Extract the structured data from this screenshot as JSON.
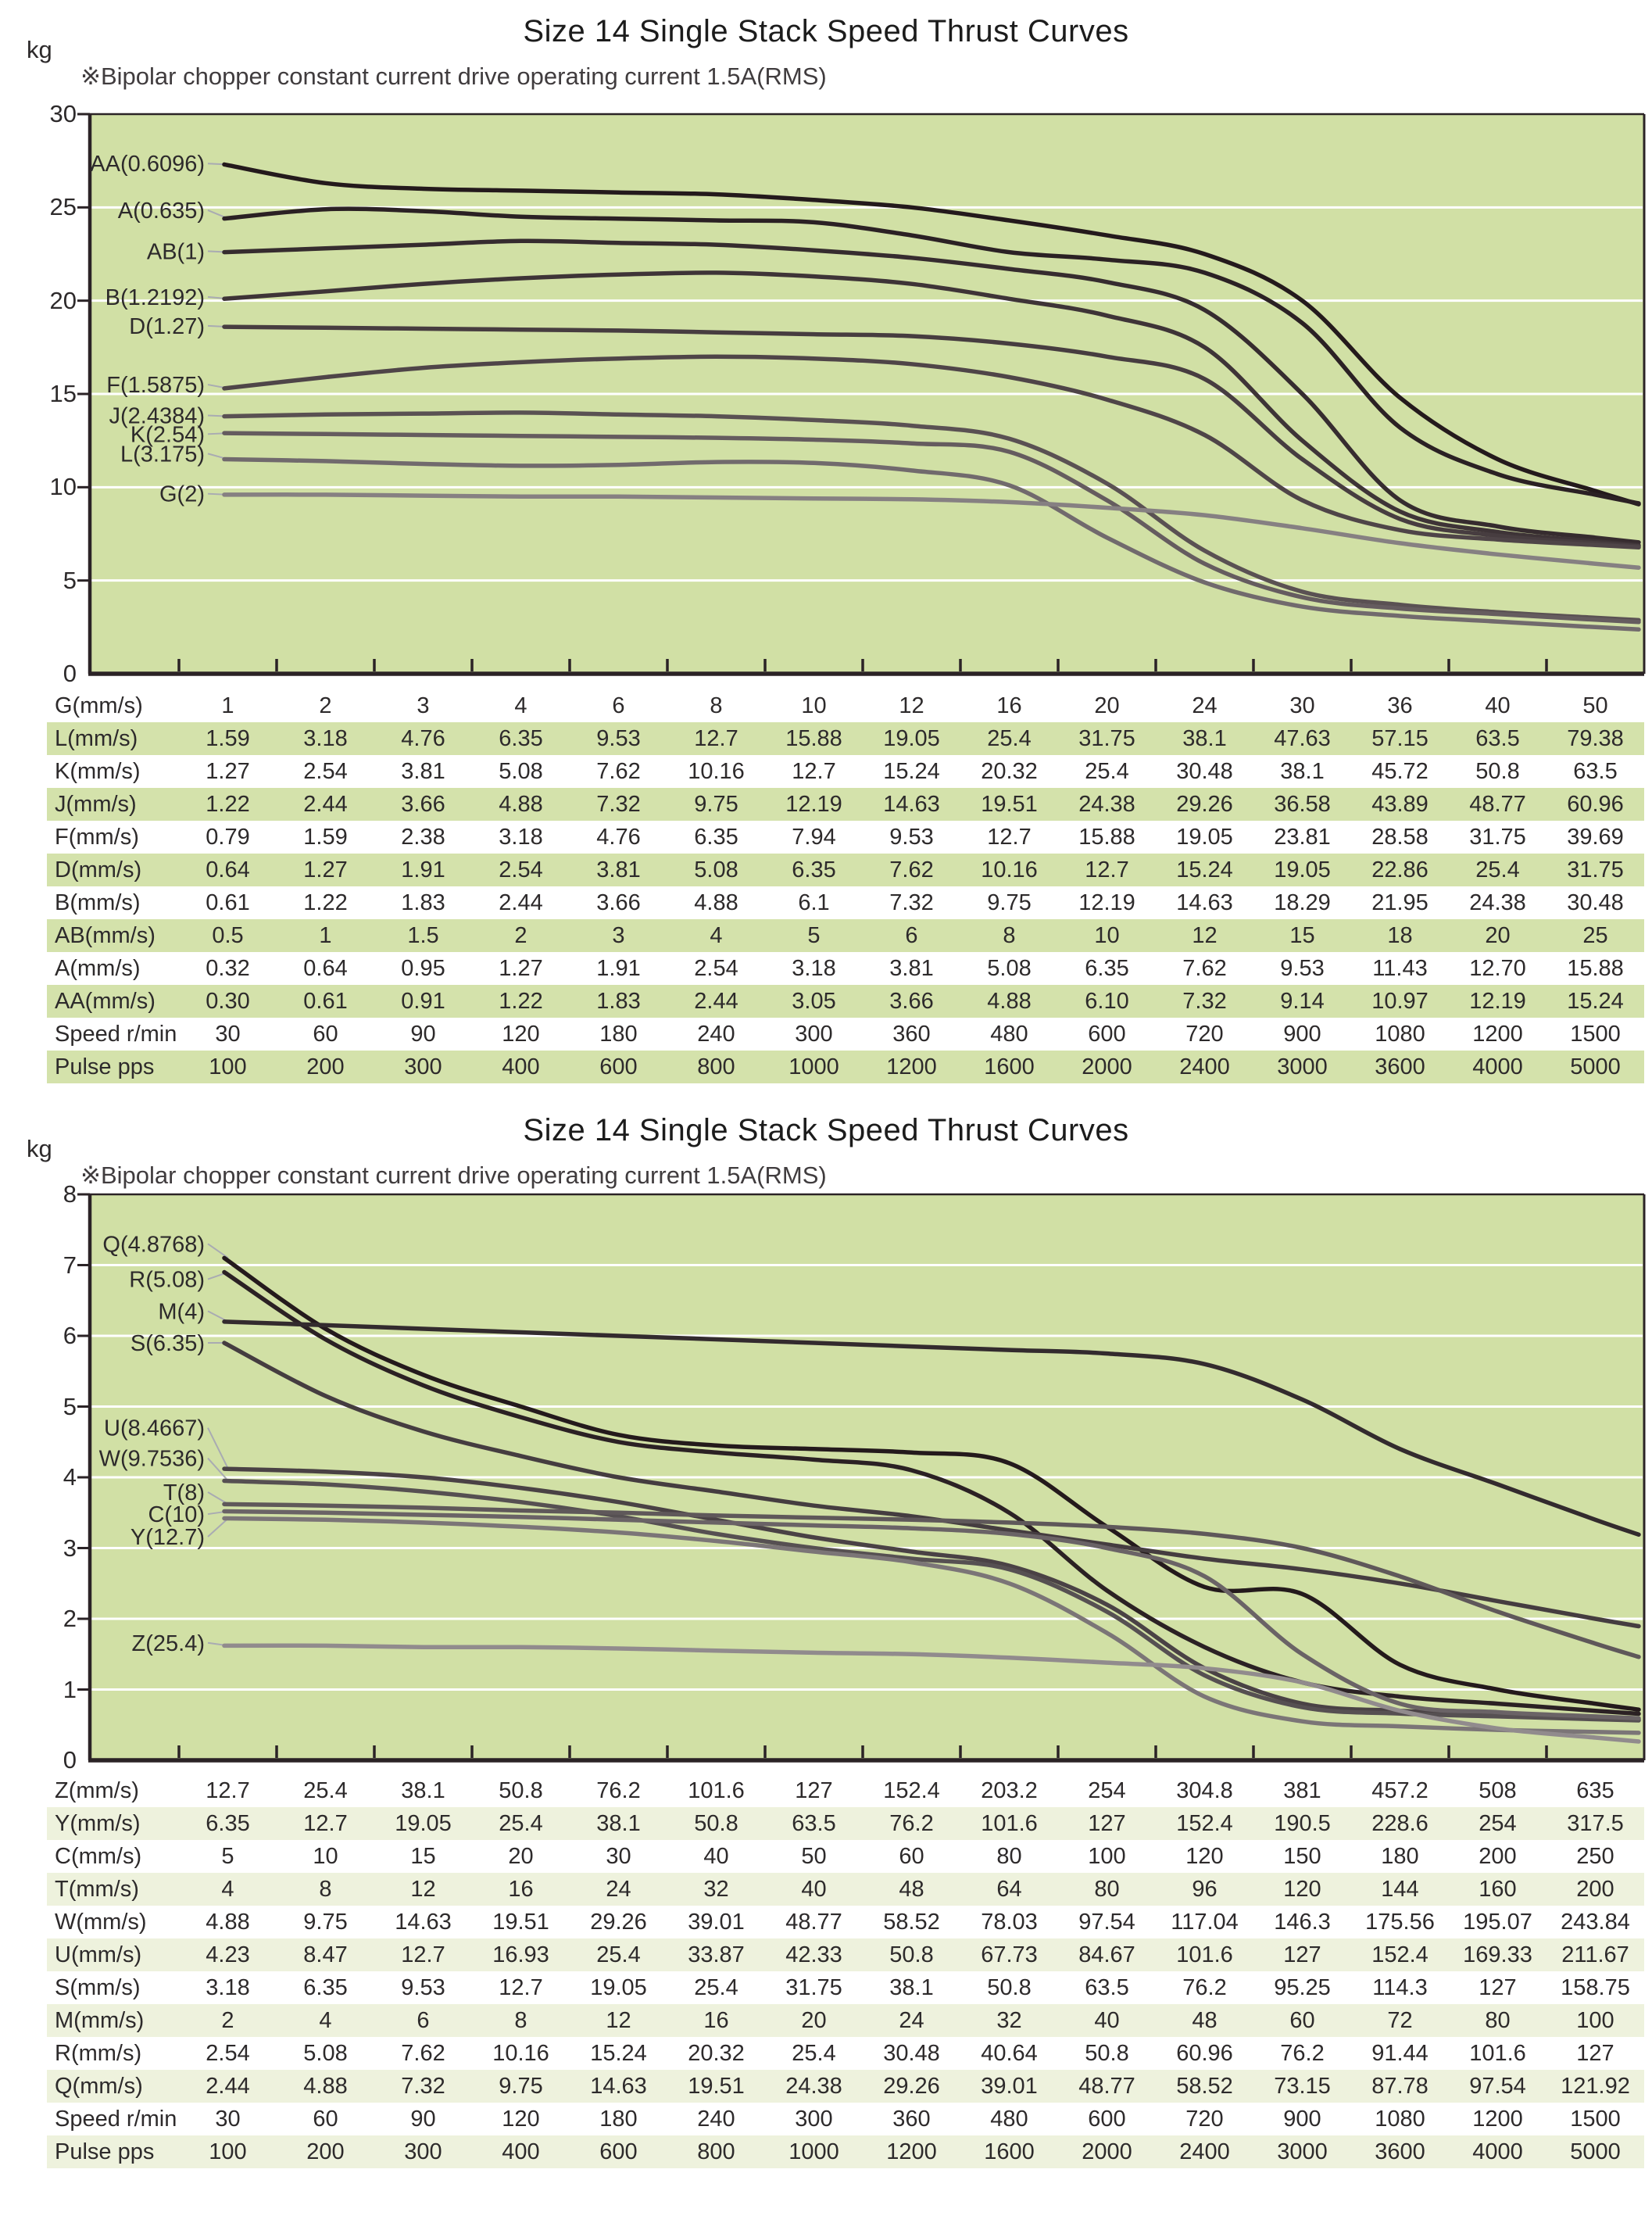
{
  "chart_data": [
    {
      "type": "line",
      "title": "Size 14 Single Stack Speed Thrust Curves",
      "subtitle": "※Bipolar chopper constant current drive operating current  1.5A(RMS)",
      "y_unit": "kg",
      "ylim": [
        0,
        30
      ],
      "y_ticks": [
        "30",
        "25",
        "20",
        "15",
        "10",
        "5",
        "0"
      ],
      "grid": "horizontal-white-lines",
      "legend_position": "inline-left-labels",
      "plot_bg": "#d1e0a5",
      "stripe_color": "#d4e2ab",
      "series": [
        {
          "name": "AA",
          "label": "AA(0.6096)",
          "color": "#241a1c",
          "label_kg": 27.35,
          "values_kg": [
            27.3,
            26.3,
            26.0,
            25.9,
            25.8,
            25.7,
            25.4,
            25.0,
            24.3,
            23.5,
            22.5,
            20.0,
            14.8,
            11.5,
            9.8
          ]
        },
        {
          "name": "A",
          "label": "A(0.635)",
          "color": "#2b2124",
          "label_kg": 24.85,
          "values_kg": [
            24.4,
            24.9,
            24.8,
            24.5,
            24.4,
            24.3,
            24.2,
            23.5,
            22.6,
            22.2,
            21.5,
            18.8,
            13.2,
            10.7,
            9.6
          ]
        },
        {
          "name": "AB",
          "label": "AB(1)",
          "color": "#362c2f",
          "label_kg": 22.65,
          "values_kg": [
            22.6,
            22.8,
            23.0,
            23.2,
            23.1,
            23.0,
            22.7,
            22.3,
            21.7,
            21.0,
            19.5,
            15.0,
            9.3,
            7.9,
            7.3
          ]
        },
        {
          "name": "B",
          "label": "B(1.2192)",
          "color": "#3e3437",
          "label_kg": 20.2,
          "values_kg": [
            20.1,
            20.5,
            20.9,
            21.2,
            21.4,
            21.5,
            21.3,
            20.9,
            20.1,
            19.2,
            17.5,
            12.5,
            8.7,
            7.6,
            7.1
          ]
        },
        {
          "name": "D",
          "label": "D(1.27)",
          "color": "#473d40",
          "label_kg": 18.65,
          "values_kg": [
            18.6,
            18.55,
            18.5,
            18.45,
            18.4,
            18.3,
            18.2,
            18.1,
            17.7,
            17.0,
            15.8,
            11.5,
            8.3,
            7.4,
            7.0
          ]
        },
        {
          "name": "F",
          "label": "F(1.5875)",
          "color": "#4f4548",
          "label_kg": 15.5,
          "values_kg": [
            15.3,
            15.9,
            16.4,
            16.7,
            16.9,
            17.0,
            16.9,
            16.6,
            15.9,
            14.7,
            12.8,
            9.3,
            7.7,
            7.2,
            6.9
          ]
        },
        {
          "name": "J",
          "label": "J(2.4384)",
          "color": "#5a5153",
          "label_kg": 13.85,
          "values_kg": [
            13.8,
            13.9,
            13.95,
            14.0,
            13.9,
            13.8,
            13.6,
            13.3,
            12.6,
            10.2,
            6.6,
            4.4,
            3.7,
            3.3,
            3.0
          ]
        },
        {
          "name": "K",
          "label": "K(2.54)",
          "color": "#655c5f",
          "label_kg": 12.85,
          "values_kg": [
            12.9,
            12.85,
            12.8,
            12.75,
            12.7,
            12.65,
            12.55,
            12.35,
            11.9,
            9.3,
            5.9,
            4.1,
            3.5,
            3.2,
            2.9
          ]
        },
        {
          "name": "L",
          "label": "L(3.175)",
          "color": "#716a6d",
          "label_kg": 11.8,
          "values_kg": [
            11.5,
            11.4,
            11.25,
            11.15,
            11.2,
            11.35,
            11.3,
            10.9,
            10.1,
            7.3,
            4.9,
            3.6,
            3.1,
            2.8,
            2.5
          ]
        },
        {
          "name": "G",
          "label": "G(2)",
          "color": "#868082",
          "label_kg": 9.65,
          "values_kg": [
            9.6,
            9.6,
            9.55,
            9.5,
            9.5,
            9.45,
            9.4,
            9.35,
            9.2,
            8.9,
            8.5,
            7.8,
            7.0,
            6.4,
            5.9
          ]
        }
      ],
      "table": {
        "rows": [
          {
            "label": "G(mm/s)",
            "values": [
              "1",
              "2",
              "3",
              "4",
              "6",
              "8",
              "10",
              "12",
              "16",
              "20",
              "24",
              "30",
              "36",
              "40",
              "50"
            ]
          },
          {
            "label": "L(mm/s)",
            "values": [
              "1.59",
              "3.18",
              "4.76",
              "6.35",
              "9.53",
              "12.7",
              "15.88",
              "19.05",
              "25.4",
              "31.75",
              "38.1",
              "47.63",
              "57.15",
              "63.5",
              "79.38"
            ]
          },
          {
            "label": "K(mm/s)",
            "values": [
              "1.27",
              "2.54",
              "3.81",
              "5.08",
              "7.62",
              "10.16",
              "12.7",
              "15.24",
              "20.32",
              "25.4",
              "30.48",
              "38.1",
              "45.72",
              "50.8",
              "63.5"
            ]
          },
          {
            "label": "J(mm/s)",
            "values": [
              "1.22",
              "2.44",
              "3.66",
              "4.88",
              "7.32",
              "9.75",
              "12.19",
              "14.63",
              "19.51",
              "24.38",
              "29.26",
              "36.58",
              "43.89",
              "48.77",
              "60.96"
            ]
          },
          {
            "label": "F(mm/s)",
            "values": [
              "0.79",
              "1.59",
              "2.38",
              "3.18",
              "4.76",
              "6.35",
              "7.94",
              "9.53",
              "12.7",
              "15.88",
              "19.05",
              "23.81",
              "28.58",
              "31.75",
              "39.69"
            ]
          },
          {
            "label": "D(mm/s)",
            "values": [
              "0.64",
              "1.27",
              "1.91",
              "2.54",
              "3.81",
              "5.08",
              "6.35",
              "7.62",
              "10.16",
              "12.7",
              "15.24",
              "19.05",
              "22.86",
              "25.4",
              "31.75"
            ]
          },
          {
            "label": "B(mm/s)",
            "values": [
              "0.61",
              "1.22",
              "1.83",
              "2.44",
              "3.66",
              "4.88",
              "6.1",
              "7.32",
              "9.75",
              "12.19",
              "14.63",
              "18.29",
              "21.95",
              "24.38",
              "30.48"
            ]
          },
          {
            "label": "AB(mm/s)",
            "values": [
              "0.5",
              "1",
              "1.5",
              "2",
              "3",
              "4",
              "5",
              "6",
              "8",
              "10",
              "12",
              "15",
              "18",
              "20",
              "25"
            ]
          },
          {
            "label": "A(mm/s)",
            "values": [
              "0.32",
              "0.64",
              "0.95",
              "1.27",
              "1.91",
              "2.54",
              "3.18",
              "3.81",
              "5.08",
              "6.35",
              "7.62",
              "9.53",
              "11.43",
              "12.70",
              "15.88"
            ]
          },
          {
            "label": "AA(mm/s)",
            "values": [
              "0.30",
              "0.61",
              "0.91",
              "1.22",
              "1.83",
              "2.44",
              "3.05",
              "3.66",
              "4.88",
              "6.10",
              "7.32",
              "9.14",
              "10.97",
              "12.19",
              "15.24"
            ]
          },
          {
            "label": "Speed r/min",
            "values": [
              "30",
              "60",
              "90",
              "120",
              "180",
              "240",
              "300",
              "360",
              "480",
              "600",
              "720",
              "900",
              "1080",
              "1200",
              "1500"
            ]
          },
          {
            "label": "Pulse pps",
            "values": [
              "100",
              "200",
              "300",
              "400",
              "600",
              "800",
              "1000",
              "1200",
              "1600",
              "2000",
              "2400",
              "3000",
              "3600",
              "4000",
              "5000"
            ]
          }
        ]
      }
    },
    {
      "type": "line",
      "title": "Size 14 Single Stack Speed Thrust Curves",
      "subtitle": "※Bipolar chopper constant current drive operating current  1.5A(RMS)",
      "y_unit": "kg",
      "ylim": [
        0,
        8
      ],
      "y_ticks": [
        "8",
        "7",
        "6",
        "5",
        "4",
        "3",
        "2",
        "1",
        "0"
      ],
      "grid": "horizontal-white-lines",
      "legend_position": "inline-left-labels",
      "plot_bg": "#d1e0a5",
      "stripe_color": "#eef2dd",
      "series": [
        {
          "name": "Q",
          "label": "Q(4.8768)",
          "color": "#241a1c",
          "label_kg": 7.3,
          "values_kg": [
            7.1,
            6.1,
            5.45,
            5.0,
            4.6,
            4.45,
            4.4,
            4.35,
            4.2,
            3.3,
            2.45,
            2.35,
            1.35,
            1.0,
            0.8
          ]
        },
        {
          "name": "R",
          "label": "R(5.08)",
          "color": "#2b2124",
          "label_kg": 6.8,
          "values_kg": [
            6.9,
            5.95,
            5.3,
            4.85,
            4.5,
            4.35,
            4.25,
            4.1,
            3.5,
            2.4,
            1.6,
            1.1,
            0.9,
            0.8,
            0.7
          ]
        },
        {
          "name": "M",
          "label": "M(4)",
          "color": "#332b2e",
          "label_kg": 6.35,
          "values_kg": [
            6.2,
            6.15,
            6.1,
            6.05,
            6.0,
            5.95,
            5.9,
            5.85,
            5.8,
            5.75,
            5.6,
            5.1,
            4.4,
            3.9,
            3.4
          ]
        },
        {
          "name": "S",
          "label": "S(6.35)",
          "color": "#453d40",
          "label_kg": 5.9,
          "values_kg": [
            5.9,
            5.15,
            4.65,
            4.3,
            4.0,
            3.8,
            3.6,
            3.45,
            3.25,
            3.05,
            2.85,
            2.7,
            2.5,
            2.25,
            2.0
          ]
        },
        {
          "name": "U",
          "label": "U(8.4667)",
          "color": "#4a4245",
          "label_kg": 4.7,
          "values_kg": [
            4.12,
            4.08,
            4.0,
            3.85,
            3.65,
            3.4,
            3.15,
            2.95,
            2.75,
            2.2,
            1.3,
            0.8,
            0.7,
            0.65,
            0.6
          ]
        },
        {
          "name": "W",
          "label": "W(9.7536)",
          "color": "#565052",
          "label_kg": 4.27,
          "values_kg": [
            3.95,
            3.9,
            3.8,
            3.65,
            3.45,
            3.2,
            3.0,
            2.85,
            2.7,
            2.1,
            1.2,
            0.75,
            0.66,
            0.62,
            0.58
          ]
        },
        {
          "name": "T",
          "label": "T(8)",
          "color": "#5f585a",
          "label_kg": 3.79,
          "values_kg": [
            3.62,
            3.6,
            3.57,
            3.53,
            3.5,
            3.46,
            3.43,
            3.4,
            3.36,
            3.3,
            3.2,
            3.0,
            2.6,
            2.1,
            1.65
          ]
        },
        {
          "name": "C",
          "label": "C(10)",
          "color": "#6a6366",
          "label_kg": 3.48,
          "values_kg": [
            3.52,
            3.5,
            3.47,
            3.44,
            3.4,
            3.36,
            3.32,
            3.28,
            3.2,
            3.0,
            2.6,
            1.5,
            0.8,
            0.68,
            0.62
          ]
        },
        {
          "name": "Y",
          "label": "Y(12.7)",
          "color": "#7b7577",
          "label_kg": 3.16,
          "values_kg": [
            3.42,
            3.4,
            3.36,
            3.3,
            3.22,
            3.1,
            2.95,
            2.8,
            2.5,
            1.8,
            0.9,
            0.55,
            0.48,
            0.43,
            0.4
          ]
        },
        {
          "name": "Z",
          "label": "Z(25.4)",
          "color": "#918b8d",
          "label_kg": 1.66,
          "values_kg": [
            1.62,
            1.62,
            1.6,
            1.6,
            1.58,
            1.55,
            1.52,
            1.5,
            1.45,
            1.38,
            1.3,
            1.1,
            0.7,
            0.45,
            0.32
          ]
        }
      ],
      "table": {
        "rows": [
          {
            "label": "Z(mm/s)",
            "values": [
              "12.7",
              "25.4",
              "38.1",
              "50.8",
              "76.2",
              "101.6",
              "127",
              "152.4",
              "203.2",
              "254",
              "304.8",
              "381",
              "457.2",
              "508",
              "635"
            ]
          },
          {
            "label": "Y(mm/s)",
            "values": [
              "6.35",
              "12.7",
              "19.05",
              "25.4",
              "38.1",
              "50.8",
              "63.5",
              "76.2",
              "101.6",
              "127",
              "152.4",
              "190.5",
              "228.6",
              "254",
              "317.5"
            ]
          },
          {
            "label": "C(mm/s)",
            "values": [
              "5",
              "10",
              "15",
              "20",
              "30",
              "40",
              "50",
              "60",
              "80",
              "100",
              "120",
              "150",
              "180",
              "200",
              "250"
            ]
          },
          {
            "label": "T(mm/s)",
            "values": [
              "4",
              "8",
              "12",
              "16",
              "24",
              "32",
              "40",
              "48",
              "64",
              "80",
              "96",
              "120",
              "144",
              "160",
              "200"
            ]
          },
          {
            "label": "W(mm/s)",
            "values": [
              "4.88",
              "9.75",
              "14.63",
              "19.51",
              "29.26",
              "39.01",
              "48.77",
              "58.52",
              "78.03",
              "97.54",
              "117.04",
              "146.3",
              "175.56",
              "195.07",
              "243.84"
            ]
          },
          {
            "label": "U(mm/s)",
            "values": [
              "4.23",
              "8.47",
              "12.7",
              "16.93",
              "25.4",
              "33.87",
              "42.33",
              "50.8",
              "67.73",
              "84.67",
              "101.6",
              "127",
              "152.4",
              "169.33",
              "211.67"
            ]
          },
          {
            "label": "S(mm/s)",
            "values": [
              "3.18",
              "6.35",
              "9.53",
              "12.7",
              "19.05",
              "25.4",
              "31.75",
              "38.1",
              "50.8",
              "63.5",
              "76.2",
              "95.25",
              "114.3",
              "127",
              "158.75"
            ]
          },
          {
            "label": "M(mm/s)",
            "values": [
              "2",
              "4",
              "6",
              "8",
              "12",
              "16",
              "20",
              "24",
              "32",
              "40",
              "48",
              "60",
              "72",
              "80",
              "100"
            ]
          },
          {
            "label": "R(mm/s)",
            "values": [
              "2.54",
              "5.08",
              "7.62",
              "10.16",
              "15.24",
              "20.32",
              "25.4",
              "30.48",
              "40.64",
              "50.8",
              "60.96",
              "76.2",
              "91.44",
              "101.6",
              "127"
            ]
          },
          {
            "label": "Q(mm/s)",
            "values": [
              "2.44",
              "4.88",
              "7.32",
              "9.75",
              "14.63",
              "19.51",
              "24.38",
              "29.26",
              "39.01",
              "48.77",
              "58.52",
              "73.15",
              "87.78",
              "97.54",
              "121.92"
            ]
          },
          {
            "label": "Speed r/min",
            "values": [
              "30",
              "60",
              "90",
              "120",
              "180",
              "240",
              "300",
              "360",
              "480",
              "600",
              "720",
              "900",
              "1080",
              "1200",
              "1500"
            ]
          },
          {
            "label": "Pulse pps",
            "values": [
              "100",
              "200",
              "300",
              "400",
              "600",
              "800",
              "1000",
              "1200",
              "1600",
              "2000",
              "2400",
              "3000",
              "3600",
              "4000",
              "5000"
            ]
          }
        ]
      }
    }
  ]
}
